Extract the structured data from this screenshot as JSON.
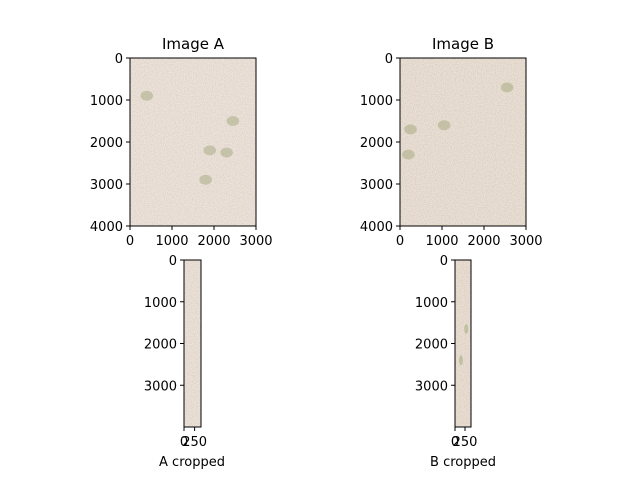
{
  "chart_data": [
    {
      "type": "image",
      "title": "Image A",
      "xlabel": "",
      "ylabel": "",
      "xlim": [
        0,
        3000
      ],
      "ylim": [
        4000,
        0
      ],
      "xticks": [
        "0",
        "1000",
        "2000",
        "3000"
      ],
      "yticks": [
        "0",
        "1000",
        "2000",
        "3000",
        "4000"
      ],
      "image": {
        "base_color": "#ede4dc",
        "speckle_color": "#c9b4a2",
        "patch_color": "#a9ad86",
        "patches": [
          [
            2450,
            1500
          ],
          [
            1900,
            2200
          ],
          [
            2300,
            2250
          ],
          [
            1800,
            2900
          ],
          [
            400,
            900
          ]
        ]
      }
    },
    {
      "type": "image",
      "title": "Image B",
      "xlabel": "",
      "ylabel": "",
      "xlim": [
        0,
        3000
      ],
      "ylim": [
        4000,
        0
      ],
      "xticks": [
        "0",
        "1000",
        "2000",
        "3000"
      ],
      "yticks": [
        "0",
        "1000",
        "2000",
        "3000",
        "4000"
      ],
      "image": {
        "base_color": "#ebe1d6",
        "speckle_color": "#bba28c",
        "patch_color": "#a7ab84",
        "patches": [
          [
            250,
            1700
          ],
          [
            2550,
            700
          ],
          [
            200,
            2300
          ],
          [
            1050,
            1600
          ]
        ]
      }
    },
    {
      "type": "image",
      "title": "",
      "xlabel": "A cropped",
      "ylabel": "",
      "xlim": [
        0,
        400
      ],
      "ylim": [
        4000,
        0
      ],
      "xticks": [
        "0",
        "250"
      ],
      "yticks": [
        "0",
        "1000",
        "2000",
        "3000"
      ],
      "image": {
        "base_color": "#ece3da",
        "speckle_color": "#c5ae9c",
        "patch_color": "#b3b28e",
        "patches": []
      }
    },
    {
      "type": "image",
      "title": "",
      "xlabel": "B cropped",
      "ylabel": "",
      "xlim": [
        0,
        400
      ],
      "ylim": [
        4000,
        0
      ],
      "xticks": [
        "0",
        "250"
      ],
      "yticks": [
        "0",
        "1000",
        "2000",
        "3000"
      ],
      "image": {
        "base_color": "#ebe0d5",
        "speckle_color": "#bda38d",
        "patch_color": "#a4ab82",
        "patches": [
          [
            280,
            1650
          ],
          [
            150,
            2400
          ]
        ]
      }
    }
  ]
}
